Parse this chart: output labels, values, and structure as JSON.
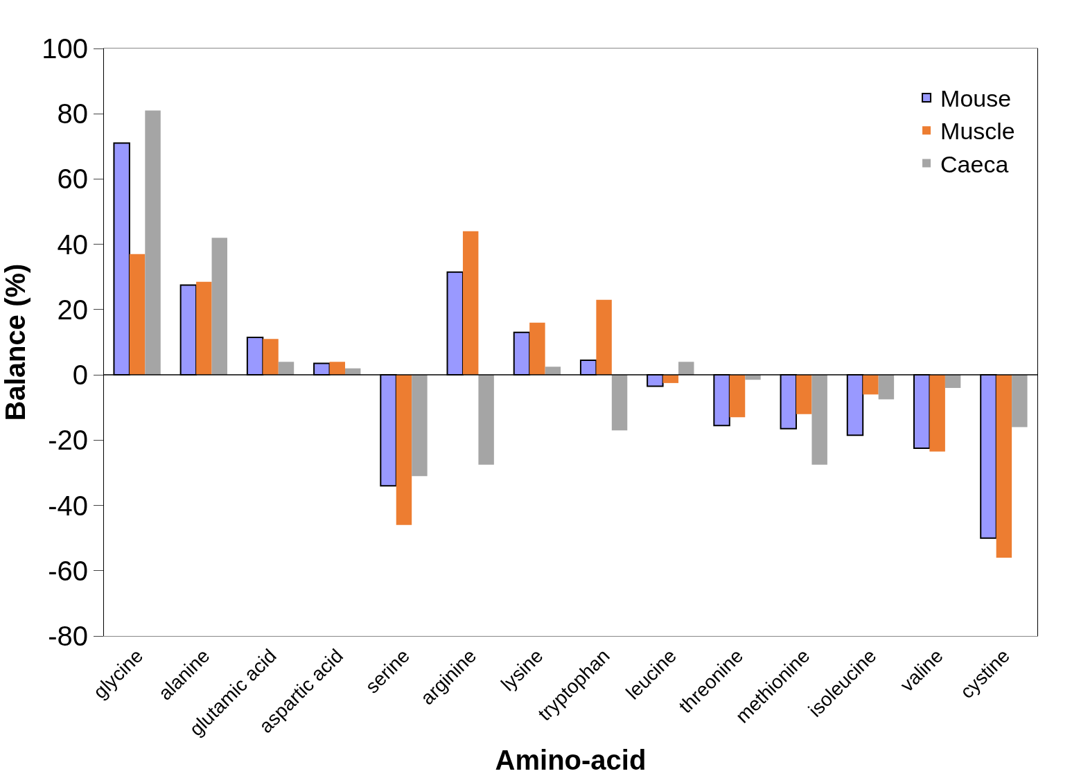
{
  "chart_data": {
    "type": "bar",
    "xlabel": "Amino-acid",
    "ylabel": "Balance (%)",
    "categories": [
      "glycine",
      "alanine",
      "glutamic acid",
      "aspartic acid",
      "serine",
      "arginine",
      "lysine",
      "tryptophan",
      "leucine",
      "threonine",
      "methionine",
      "isoleucine",
      "valine",
      "cystine"
    ],
    "series": [
      {
        "name": "Mouse",
        "color": "#9999ff",
        "values": [
          71,
          27.5,
          11.5,
          3.5,
          -34,
          31.5,
          13,
          4.5,
          -3.5,
          -15.5,
          -16.5,
          -18.5,
          -22.5,
          -50
        ]
      },
      {
        "name": "Muscle",
        "color": "#ed7d31",
        "values": [
          37,
          28.5,
          11,
          4,
          -46,
          44,
          16,
          23,
          -2.5,
          -13,
          -12,
          -6,
          -23.5,
          -56
        ]
      },
      {
        "name": "Caeca",
        "color": "#a5a5a5",
        "values": [
          81,
          42,
          4,
          2,
          -31,
          -27.5,
          2.5,
          -17,
          4,
          -1.5,
          -27.5,
          -7.5,
          -4,
          -16
        ]
      }
    ],
    "ylim": [
      -80,
      100
    ],
    "yticks": [
      -80,
      -60,
      -40,
      -20,
      0,
      20,
      40,
      60,
      80,
      100
    ],
    "ref_lines": [
      {
        "axis": "y",
        "value": 0,
        "color": "#000000"
      }
    ],
    "legend": "top right"
  }
}
